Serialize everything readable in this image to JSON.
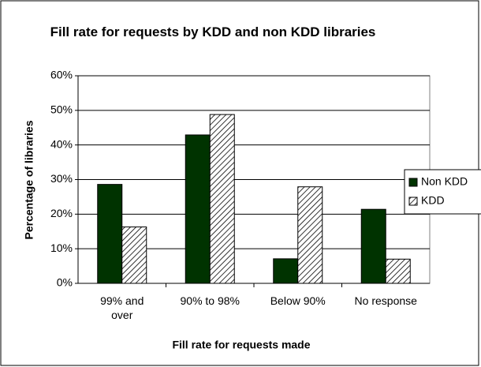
{
  "chart_data": {
    "type": "bar",
    "title": "Fill rate for requests by KDD and non KDD libraries",
    "xlabel": "Fill rate for requests made",
    "ylabel": "Percentage of libraries",
    "categories": [
      "99% and over",
      "90% to 98%",
      "Below 90%",
      "No response"
    ],
    "series": [
      {
        "name": "Non KDD",
        "color": "#003300",
        "hatch": false,
        "values": [
          28.6,
          42.9,
          7.1,
          21.4
        ]
      },
      {
        "name": "KDD",
        "color": "#000000",
        "hatch": true,
        "values": [
          16.3,
          48.8,
          27.9,
          7.0
        ]
      }
    ],
    "ylim": [
      0,
      60
    ],
    "yticks": [
      {
        "value": 0,
        "label": "0%"
      },
      {
        "value": 10,
        "label": "10%"
      },
      {
        "value": 20,
        "label": "20%"
      },
      {
        "value": 30,
        "label": "30%"
      },
      {
        "value": 40,
        "label": "40%"
      },
      {
        "value": 50,
        "label": "50%"
      },
      {
        "value": 60,
        "label": "60%"
      }
    ],
    "grid": true,
    "legend": "right"
  }
}
